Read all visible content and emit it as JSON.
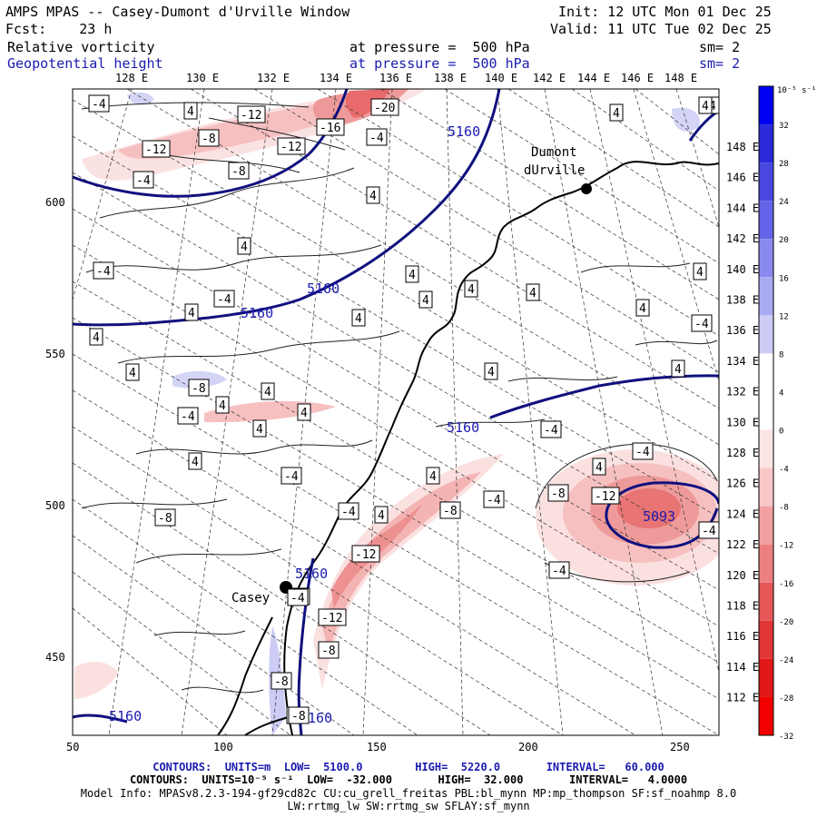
{
  "header": {
    "model_title": "AMPS MPAS -- Casey-Dumont d'Urville Window",
    "init": "Init: 12 UTC Mon 01 Dec 25",
    "forecast": "Fcst:    23 h",
    "valid": "Valid: 11 UTC Tue 02 Dec 25",
    "field1": {
      "name": "Relative vorticity",
      "level": "at pressure =  500 hPa",
      "smooth": "sm= 2"
    },
    "field2": {
      "name": "Geopotential height",
      "level": "at pressure =  500 hPa",
      "smooth": "sm= 2"
    }
  },
  "map": {
    "top_lon_labels": [
      "128 E",
      "130 E",
      "132 E",
      "134 E",
      "136 E",
      "138 E",
      "140 E",
      "142 E",
      "144 E",
      "146 E",
      "148 E"
    ],
    "right_lon_labels": [
      "148 E",
      "146 E",
      "144 E",
      "142 E",
      "140 E",
      "138 E",
      "136 E",
      "134 E",
      "132 E",
      "130 E",
      "128 E",
      "126 E",
      "124 E",
      "122 E",
      "120 E",
      "118 E",
      "116 E",
      "114 E",
      "112 E"
    ],
    "x_ticks": [
      "50",
      "100",
      "150",
      "200",
      "250"
    ],
    "y_ticks": [
      "600",
      "550",
      "500",
      "450"
    ],
    "stations": [
      {
        "name": "Dumont",
        "name2": "dUrville"
      },
      {
        "name": "Casey",
        "name2": ""
      }
    ],
    "height_labels": [
      "5160",
      "5160",
      "5160",
      "5160",
      "5160",
      "5160",
      "5160",
      "5093"
    ],
    "vorticity_labels": [
      "-4",
      "4",
      "-12",
      "-16",
      "-20",
      "4",
      "-12",
      "-8",
      "-12",
      "-4",
      "-4",
      "-8",
      "-4",
      "4",
      "4",
      "-4",
      "4",
      "-4",
      "4",
      "4",
      "4",
      "4",
      "4",
      "4",
      "4",
      "-4",
      "4",
      "4",
      "4",
      "4",
      "4",
      "4",
      "4",
      "4",
      "-8",
      "-4",
      "4",
      "-4",
      "-8",
      "-4",
      "-4",
      "4",
      "4",
      "-12",
      "-8",
      "-4",
      "-8",
      "4",
      "-4",
      "-12",
      "-4",
      "-12",
      "-8",
      "-8",
      "-4",
      "-4",
      "-4",
      "-8",
      "-4",
      "4",
      "4"
    ]
  },
  "colorbar": {
    "unit": "10⁻⁵ s⁻¹",
    "labels": [
      "32",
      "28",
      "24",
      "20",
      "16",
      "12",
      "8",
      "4",
      "0",
      "-4",
      "-8",
      "-12",
      "-16",
      "-20",
      "-24",
      "-28",
      "-32"
    ],
    "colors": [
      "#0000f0",
      "#2a2ad8",
      "#4848e0",
      "#6464e8",
      "#8a8aee",
      "#aaaaf2",
      "#ccccf6",
      "#ffffff",
      "#ffffff",
      "#fbe4e4",
      "#f8c8c8",
      "#f2a0a0",
      "#ec8080",
      "#e65858",
      "#e03636",
      "#e01818",
      "#f20000"
    ]
  },
  "footer": {
    "line1": "CONTOURS:  UNITS=m  LOW=  5100.0        HIGH=  5220.0       INTERVAL=   60.000",
    "line2": "CONTOURS:  UNITS=10⁻⁵ s⁻¹  LOW=  -32.000       HIGH=  32.000       INTERVAL=   4.0000",
    "line3": "Model Info: MPASv8.2.3-194-gf29cd82c CU:cu_grell_freitas PBL:bl_mynn MP:mp_thompson SF:sf_noahmp 8.0",
    "line4": "LW:rrtmg_lw SW:rrtmg_sw SFLAY:sf_mynn"
  }
}
